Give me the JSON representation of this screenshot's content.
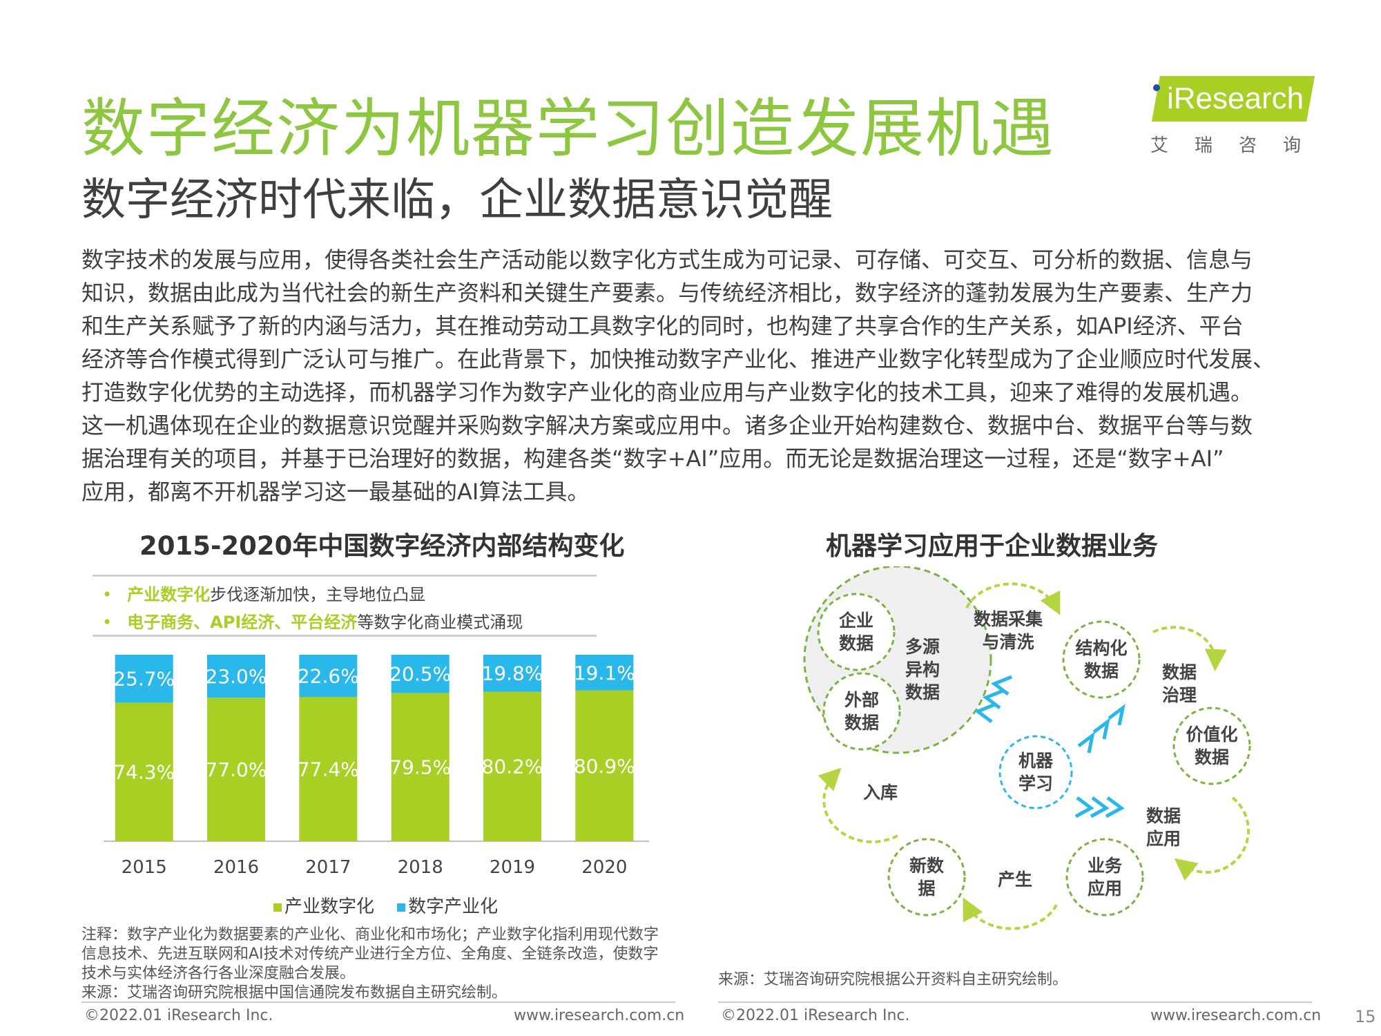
{
  "header": {
    "title": "数字经济为机器学习创造发展机遇",
    "subtitle": "数字经济时代来临，企业数据意识觉醒",
    "logo_text": "iResearch",
    "logo_cn": "艾瑞咨询"
  },
  "body": {
    "lines": [
      "数字技术的发展与应用，使得各类社会生产活动能以数字化方式生成为可记录、可存储、可交互、可分析的数据、信息与",
      "知识，数据由此成为当代社会的新生产资料和关键生产要素。与传统经济相比，数字经济的蓬勃发展为生产要素、生产力",
      "和生产关系赋予了新的内涵与活力，其在推动劳动工具数字化的同时，也构建了共享合作的生产关系，如API经济、平台",
      "经济等合作模式得到广泛认可与推广。在此背景下，加快推动数字产业化、推进产业数字化转型成为了企业顺应时代发展、",
      "打造数字化优势的主动选择，而机器学习作为数字产业化的商业应用与产业数字化的技术工具，迎来了难得的发展机遇。",
      "这一机遇体现在企业的数据意识觉醒并采购数字解决方案或应用中。诸多企业开始构建数仓、数据中台、数据平台等与数",
      "据治理有关的项目，并基于已治理好的数据，构建各类“数字+AI”应用。而无论是数据治理这一过程，还是“数字+AI”",
      "应用，都离不开机器学习这一最基础的AI算法工具。"
    ]
  },
  "left_panel": {
    "title": "2015-2020年中国数字经济内部结构变化",
    "bullet1_hl": "产业数字化",
    "bullet1_rest": "步伐逐渐加快，主导地位凸显",
    "bullet2_hl": "电子商务、API经济、平台经济",
    "bullet2_rest": "等数字化商业模式涌现",
    "note_lines": [
      "注释：数字产业化为数据要素的产业化、商业化和市场化；产业数字化指利用现代数字",
      "信息技术、先进互联网和AI技术对传统产业进行全方位、全角度、全链条改造，使数字",
      "技术与实体经济各行各业深度融合发展。",
      "来源：艾瑞咨询研究院根据中国信通院发布数据自主研究绘制。"
    ]
  },
  "chart_data": {
    "type": "bar",
    "stacked": true,
    "title": "2015-2020年中国数字经济内部结构变化",
    "categories": [
      "2015",
      "2016",
      "2017",
      "2018",
      "2019",
      "2020"
    ],
    "series": [
      {
        "name": "产业数字化",
        "color": "#a8cf24",
        "values": [
          74.3,
          77.0,
          77.4,
          79.5,
          80.2,
          80.9
        ],
        "labels": [
          "74.3%",
          "77.0%",
          "77.4%",
          "79.5%",
          "80.2%",
          "80.9%"
        ]
      },
      {
        "name": "数字产业化",
        "color": "#2ab7ea",
        "values": [
          25.7,
          23.0,
          22.6,
          20.5,
          19.8,
          19.1
        ],
        "labels": [
          "25.7%",
          "23.0%",
          "22.6%",
          "20.5%",
          "19.8%",
          "19.1%"
        ]
      }
    ],
    "ylim": [
      0,
      100
    ],
    "legend": "bottom",
    "grid": false
  },
  "right_panel": {
    "title": "机器学习应用于企业数据业务",
    "source": "来源：艾瑞咨询研究院根据公开资料自主研究绘制。",
    "nodes": {
      "enterprise": [
        "企业",
        "数据"
      ],
      "external": [
        "外部",
        "数据"
      ],
      "multi": [
        "多源",
        "异构",
        "数据"
      ],
      "collect": [
        "数据采集",
        "与清洗"
      ],
      "structured": [
        "结构化",
        "数据"
      ],
      "governance": [
        "数据",
        "治理"
      ],
      "value": [
        "价值化",
        "数据"
      ],
      "app": [
        "数据",
        "应用"
      ],
      "business": [
        "业务",
        "应用"
      ],
      "produce": [
        "产生"
      ],
      "newdata": [
        "新数",
        "据"
      ],
      "storage": [
        "入库"
      ],
      "ml": [
        "机器",
        "学习"
      ]
    }
  },
  "footer": {
    "copyright": "©2022.01 iResearch Inc.",
    "url": "www.iresearch.com.cn",
    "page": "15"
  }
}
